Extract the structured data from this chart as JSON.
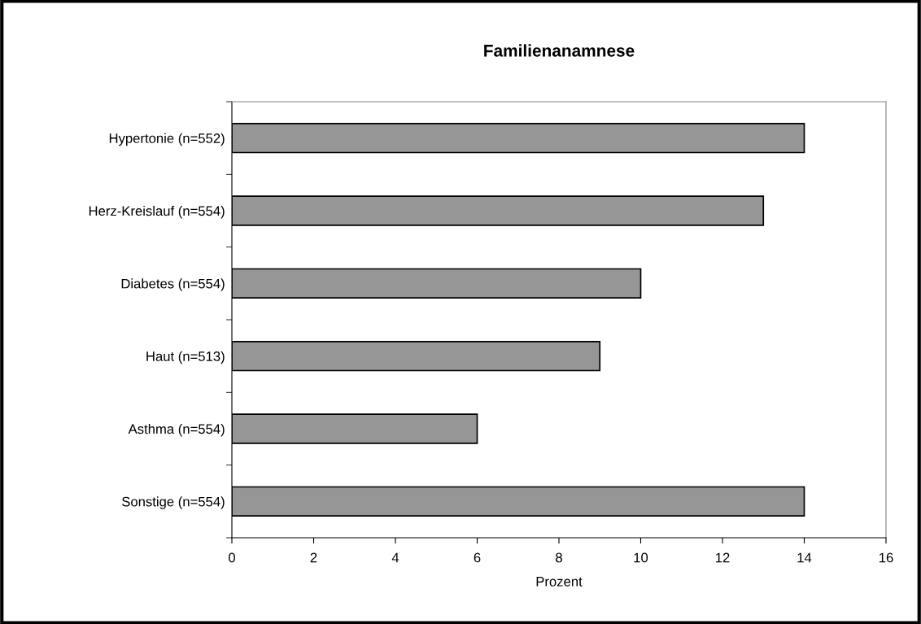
{
  "chart_data": {
    "type": "bar",
    "orientation": "horizontal",
    "title": "Familienanamnese",
    "xlabel": "Prozent",
    "categories": [
      "Hypertonie (n=552)",
      "Herz-Kreislauf (n=554)",
      "Diabetes (n=554)",
      "Haut (n=513)",
      "Asthma (n=554)",
      "Sonstige (n=554)"
    ],
    "values": [
      14,
      13,
      10,
      9,
      6,
      14
    ],
    "color": "#969696",
    "xlim": [
      0,
      16
    ],
    "xticks": [
      0,
      2,
      4,
      6,
      8,
      10,
      12,
      14,
      16
    ],
    "grid": false
  }
}
